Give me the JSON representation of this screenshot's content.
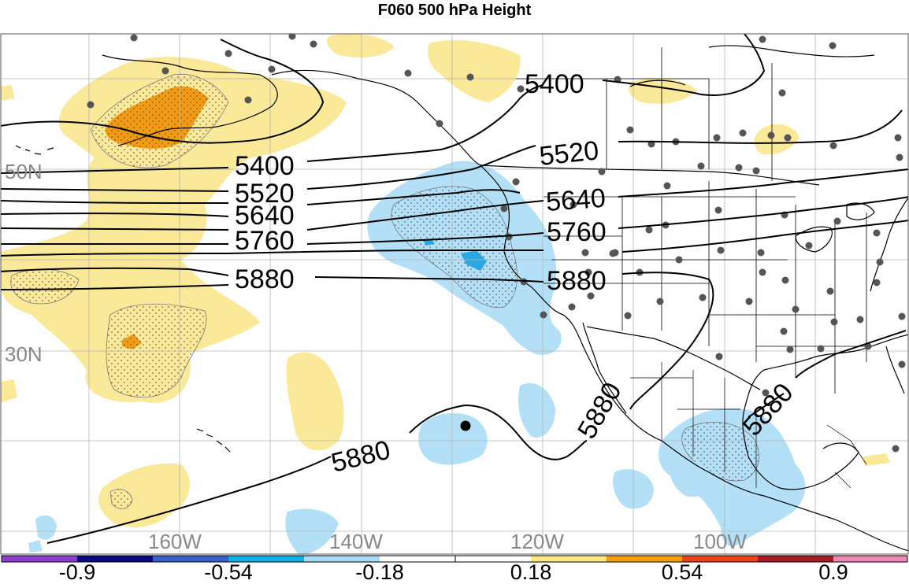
{
  "title": "F060 500 hPa Height",
  "latitude_labels": [
    "50N",
    "30N"
  ],
  "longitude_labels": [
    "160W",
    "140W",
    "120W",
    "100W"
  ],
  "contour_labels": [
    "5400",
    "5400",
    "5520",
    "5520",
    "5640",
    "5640",
    "5760",
    "5760",
    "5880",
    "5880",
    "5880",
    "5880",
    "5880"
  ],
  "colorbar": {
    "labels": [
      "-0.9",
      "-0.54",
      "-0.18",
      "0.18",
      "0.54",
      "0.9"
    ],
    "colors": [
      "#8e3fcf",
      "#0a0a7d",
      "#3b5fc6",
      "#0fb0e6",
      "#a8dcf4",
      "#ffffff",
      "#fde98a",
      "#f2a00e",
      "#e8441e",
      "#a51c22",
      "#ee88b5"
    ]
  },
  "colors": {
    "light_blue_fill": "#b4e0f7",
    "mid_blue_fill": "#2aa7e0",
    "light_yellow_fill": "#fbe99a",
    "orange_fill": "#f29a12",
    "contour_line": "#000000",
    "grid_line": "#b5b5b5",
    "station_dot": "#555555"
  }
}
